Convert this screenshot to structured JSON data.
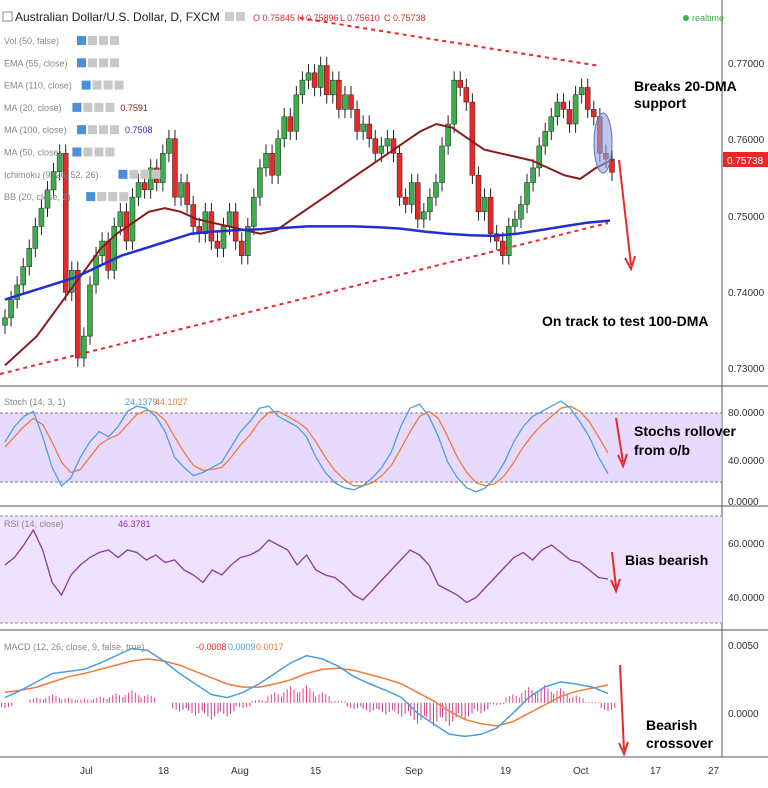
{
  "header": {
    "title": "Australian Dollar/U.S. Dollar, D, FXCM",
    "ohlc": [
      "O 0.75845",
      "H 0.75896",
      "L 0.75610",
      "C 0.75738"
    ],
    "realtime": "realtime"
  },
  "legend_main": [
    {
      "label": "Vol (50, false)",
      "value": ""
    },
    {
      "label": "EMA (55, close)",
      "value": ""
    },
    {
      "label": "EMA (110, close)",
      "value": ""
    },
    {
      "label": "MA (20, close)",
      "value": "0.7591"
    },
    {
      "label": "MA (100, close)",
      "value": "0.7508"
    },
    {
      "label": "MA (50, close)",
      "value": ""
    },
    {
      "label": "Ichimoku (9, 26, 52, 26)",
      "value": ""
    },
    {
      "label": "BB (20, close, 2)",
      "value": ""
    }
  ],
  "legend_stoch": {
    "label": "Stoch (14, 3, 1)",
    "k": "24.1379",
    "d": "44.1027"
  },
  "legend_rsi": {
    "label": "RSI (14, close)",
    "value": "46.3781"
  },
  "legend_macd": {
    "label": "MACD (12, 26, close, 9, false, true)",
    "hist": "-0.0008",
    "macd": "0.0009",
    "signal": "0.0017"
  },
  "price_ticks": [
    "0.77000",
    "0.76000",
    "0.75000",
    "0.74000",
    "0.73000"
  ],
  "price_label": "0.75738",
  "stoch_ticks": [
    "80.0000",
    "40.0000",
    "0.0000"
  ],
  "rsi_ticks": [
    "60.0000",
    "40.0000"
  ],
  "macd_ticks": [
    "0.0050",
    "0.0000"
  ],
  "x_ticks": [
    "Jul",
    "18",
    "Aug",
    "15",
    "Sep",
    "19",
    "Oct",
    "17",
    "27"
  ],
  "annotations": {
    "breaks1": "Breaks 20-DMA",
    "breaks2": "support",
    "track": "On track to test 100-DMA",
    "stoch1": "Stochs rollover",
    "stoch2": "from o/b",
    "rsi": "Bias bearish",
    "macd1": "Bearish",
    "macd2": "crossover"
  },
  "colors": {
    "up": "#3cae4c",
    "down": "#e8292a",
    "ma20": "#8b1a1a",
    "ma100": "#1f2fd1",
    "stochK": "#4a9fe0",
    "stochD": "#f07a3a",
    "rsi": "#8b3a9e",
    "band": "#d9c2ff",
    "trend": "#e8292a"
  },
  "chart_data": {
    "type": "line",
    "title": "Australian Dollar/U.S. Dollar, D, FXCM",
    "price_range": [
      0.729,
      0.7785
    ],
    "candles_close": [
      0.7375,
      0.74,
      0.742,
      0.7445,
      0.747,
      0.75,
      0.7525,
      0.755,
      0.7575,
      0.76,
      0.741,
      0.744,
      0.732,
      0.735,
      0.742,
      0.746,
      0.748,
      0.744,
      0.75,
      0.752,
      0.748,
      0.754,
      0.756,
      0.755,
      0.758,
      0.756,
      0.76,
      0.762,
      0.754,
      0.756,
      0.753,
      0.75,
      0.749,
      0.752,
      0.748,
      0.747,
      0.75,
      0.752,
      0.748,
      0.746,
      0.75,
      0.754,
      0.758,
      0.76,
      0.757,
      0.762,
      0.765,
      0.763,
      0.768,
      0.77,
      0.771,
      0.769,
      0.772,
      0.768,
      0.77,
      0.766,
      0.768,
      0.766,
      0.763,
      0.764,
      0.762,
      0.76,
      0.761,
      0.762,
      0.76,
      0.754,
      0.753,
      0.756,
      0.751,
      0.752,
      0.754,
      0.756,
      0.761,
      0.764,
      0.77,
      0.769,
      0.767,
      0.757,
      0.752,
      0.754,
      0.749,
      0.748,
      0.746,
      0.75,
      0.751,
      0.753,
      0.756,
      0.758,
      0.761,
      0.763,
      0.765,
      0.767,
      0.766,
      0.764,
      0.768,
      0.769,
      0.766,
      0.765,
      0.76,
      0.7592,
      0.7574
    ],
    "ma20": [
      0.731,
      0.733,
      0.735,
      0.738,
      0.741,
      0.744,
      0.747,
      0.749,
      0.7505,
      0.752,
      0.7525,
      0.752,
      0.751,
      0.7505,
      0.75,
      0.7495,
      0.749,
      0.7495,
      0.751,
      0.7525,
      0.754,
      0.7555,
      0.757,
      0.7585,
      0.76,
      0.7615,
      0.763,
      0.764,
      0.7635,
      0.762,
      0.7605,
      0.76,
      0.7595,
      0.759,
      0.758,
      0.757,
      0.7565,
      0.758,
      0.7591
    ],
    "ma100": [
      0.74,
      0.741,
      0.742,
      0.743,
      0.7445,
      0.746,
      0.747,
      0.748,
      0.749,
      0.7493,
      0.7495,
      0.7496,
      0.7498,
      0.75,
      0.75,
      0.75,
      0.7499,
      0.7497,
      0.7493,
      0.749,
      0.7488,
      0.7487,
      0.749,
      0.7495,
      0.75,
      0.7505,
      0.7508
    ],
    "stoch_range": [
      0,
      100
    ],
    "stoch_k": [
      55,
      70,
      80,
      85,
      60,
      30,
      12,
      20,
      40,
      55,
      65,
      60,
      70,
      85,
      90,
      88,
      80,
      65,
      40,
      30,
      22,
      25,
      30,
      35,
      50,
      65,
      75,
      88,
      90,
      80,
      75,
      70,
      60,
      40,
      25,
      15,
      10,
      8,
      12,
      20,
      30,
      45,
      70,
      88,
      92,
      80,
      60,
      35,
      20,
      10,
      6,
      10,
      20,
      35,
      55,
      70,
      80,
      85,
      90,
      95,
      88,
      75,
      60,
      40,
      24
    ],
    "stoch_d": [
      50,
      60,
      70,
      78,
      72,
      55,
      35,
      25,
      28,
      40,
      52,
      58,
      62,
      72,
      82,
      86,
      84,
      76,
      60,
      45,
      32,
      27,
      28,
      30,
      40,
      52,
      62,
      75,
      84,
      85,
      80,
      75,
      68,
      55,
      40,
      27,
      18,
      12,
      12,
      15,
      22,
      32,
      48,
      65,
      80,
      85,
      78,
      60,
      40,
      25,
      15,
      12,
      14,
      22,
      35,
      50,
      62,
      72,
      80,
      88,
      90,
      85,
      75,
      60,
      44
    ],
    "rsi_range": [
      30,
      70
    ],
    "rsi": [
      52,
      55,
      60,
      66,
      58,
      45,
      40,
      48,
      52,
      55,
      57,
      58,
      55,
      58,
      57,
      54,
      56,
      53,
      54,
      50,
      48,
      45,
      50,
      48,
      52,
      55,
      56,
      58,
      62,
      60,
      58,
      52,
      56,
      50,
      48,
      47,
      44,
      40,
      38,
      42,
      46,
      50,
      54,
      58,
      56,
      52,
      44,
      42,
      40,
      37,
      39,
      43,
      47,
      51,
      55,
      57,
      54,
      58,
      60,
      57,
      54,
      53,
      50,
      47,
      46.38
    ],
    "macd_range": [
      -0.0045,
      0.006
    ],
    "macd": [
      0.0005,
      0.0012,
      0.002,
      0.0028,
      0.003,
      0.0032,
      0.0038,
      0.0045,
      0.0052,
      0.005,
      0.004,
      0.0028,
      0.0018,
      0.0008,
      0.0005,
      0.001,
      0.0018,
      0.0028,
      0.0038,
      0.0045,
      0.0042,
      0.0035,
      0.0025,
      0.0018,
      0.0012,
      0.0005,
      -0.001,
      -0.002,
      -0.003,
      -0.0032,
      -0.003,
      -0.0024,
      -0.001,
      0.0005,
      0.0015,
      0.002,
      0.0018,
      0.0015,
      0.0009
    ],
    "signal": [
      0.001,
      0.0012,
      0.0015,
      0.002,
      0.0025,
      0.0028,
      0.0032,
      0.0036,
      0.004,
      0.0042,
      0.004,
      0.0036,
      0.003,
      0.0024,
      0.0018,
      0.0015,
      0.0015,
      0.0018,
      0.0022,
      0.0028,
      0.0032,
      0.0033,
      0.0031,
      0.0027,
      0.0023,
      0.0018,
      0.001,
      0.0002,
      -0.0008,
      -0.0016,
      -0.002,
      -0.0022,
      -0.0018,
      -0.001,
      -0.0002,
      0.0006,
      0.0011,
      0.0014,
      0.0017
    ],
    "hist": [
      -0.0005,
      0.0,
      0.0005,
      0.0008,
      0.0005,
      0.0004,
      0.0006,
      0.0009,
      0.0012,
      0.0008,
      0.0,
      -0.0008,
      -0.0012,
      -0.0016,
      -0.0013,
      -0.0005,
      0.0003,
      0.001,
      0.0016,
      0.0017,
      0.001,
      0.0002,
      -0.0006,
      -0.0009,
      -0.0011,
      -0.0013,
      -0.002,
      -0.0022,
      -0.0022,
      -0.0016,
      -0.001,
      -0.0002,
      0.0008,
      0.0015,
      0.0017,
      0.0014,
      0.0007,
      0.0001,
      -0.0008
    ]
  }
}
